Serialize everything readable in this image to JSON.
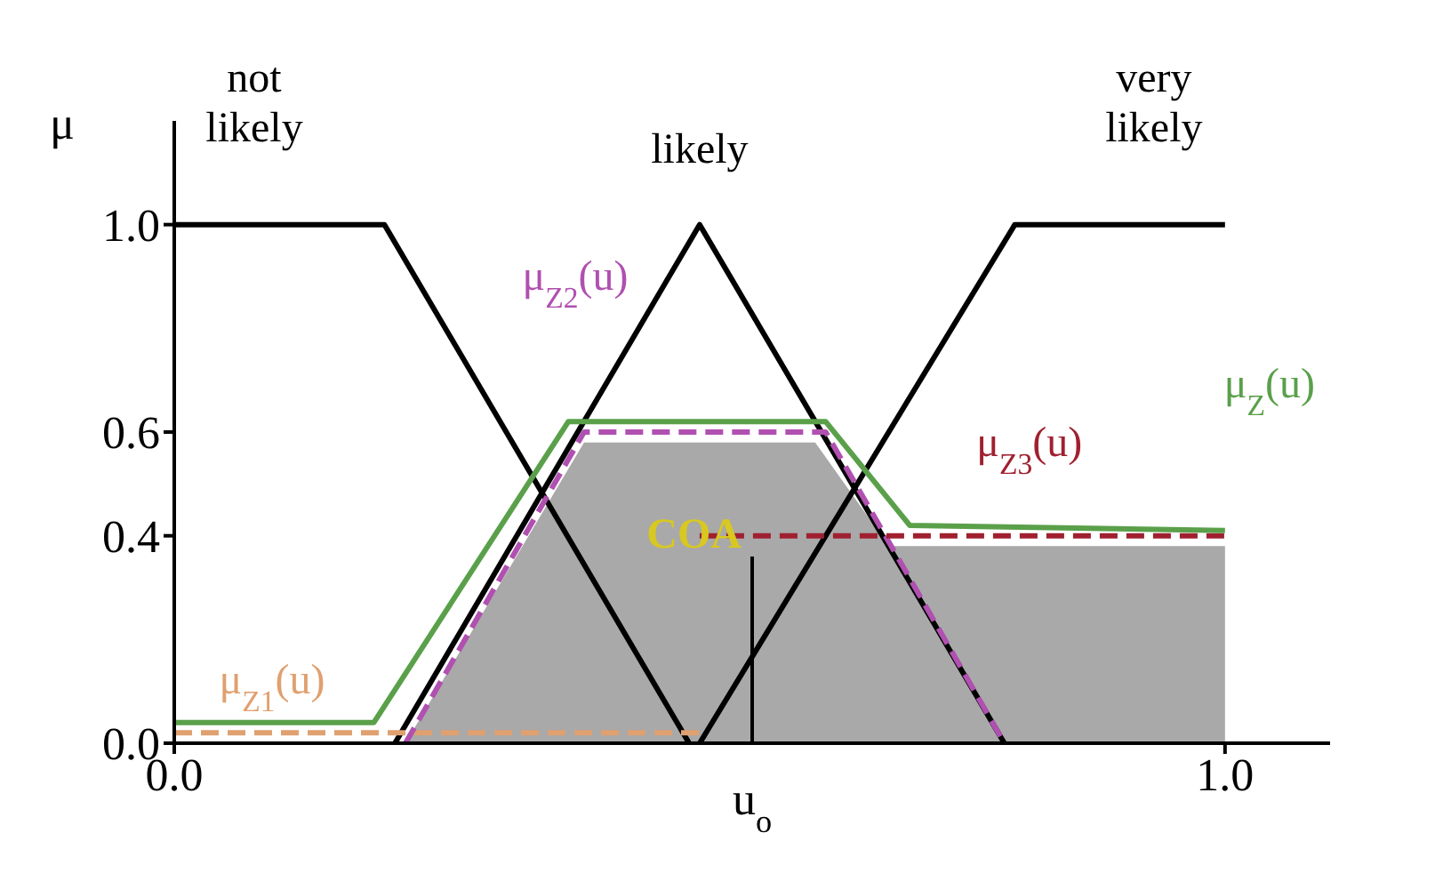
{
  "chart_data": {
    "type": "line",
    "ylabel": "μ",
    "xlim": [
      0,
      1.1
    ],
    "ylim": [
      0,
      1.2
    ],
    "xticks": [
      {
        "value": 0,
        "label": "0.0"
      },
      {
        "value": 1,
        "label": "1.0"
      }
    ],
    "yticks": [
      {
        "value": 0,
        "label": "0.0"
      },
      {
        "value": 0.4,
        "label": "0.4"
      },
      {
        "value": 0.6,
        "label": "0.6"
      },
      {
        "value": 1,
        "label": "1.0"
      }
    ],
    "grid": false,
    "legend": false,
    "marker": "none",
    "series": [
      {
        "type": "area",
        "color": "#a9a9a9",
        "x": [
          0.22,
          0.39,
          0.61,
          0.68,
          1.0
        ],
        "values": [
          0,
          0.58,
          0.58,
          0.38,
          0.38
        ]
      },
      {
        "name": "not likely",
        "color": "#000000",
        "x": [
          0,
          0.2,
          0.49
        ],
        "values": [
          1,
          1,
          0
        ]
      },
      {
        "name": "likely",
        "color": "#000000",
        "x": [
          0.21,
          0.5,
          0.79
        ],
        "values": [
          0,
          1,
          0
        ]
      },
      {
        "name": "very likely",
        "color": "#000000",
        "x": [
          0.5,
          0.8,
          1.0
        ],
        "values": [
          0,
          1,
          1
        ]
      },
      {
        "name": "μ$_{Z1}$(u)",
        "color": "#e0a070",
        "line_style": "dashed",
        "x": [
          0,
          0.5
        ],
        "values": [
          0.02,
          0.02
        ]
      },
      {
        "name": "μ$_{Z2}$(u)",
        "color": "#b050b0",
        "line_style": "dashed",
        "x": [
          0.22,
          0.39,
          0.62,
          0.79
        ],
        "values": [
          0,
          0.6,
          0.6,
          0
        ]
      },
      {
        "name": "μ$_{Z3}$(u)",
        "color": "#a02030",
        "line_style": "dashed",
        "x": [
          0.5,
          1.0
        ],
        "values": [
          0.4,
          0.4
        ]
      },
      {
        "name": "μ$_{Z}$(u)",
        "color": "#5aa04a",
        "x": [
          0,
          0.19,
          0.375,
          0.62,
          0.7,
          1.0
        ],
        "values": [
          0.04,
          0.04,
          0.62,
          0.62,
          0.42,
          0.41
        ]
      }
    ],
    "ref_lines": [
      {
        "axis": "x",
        "value": 0.55,
        "label": "u$_{o}$"
      }
    ],
    "annotations": [
      "COA"
    ]
  }
}
